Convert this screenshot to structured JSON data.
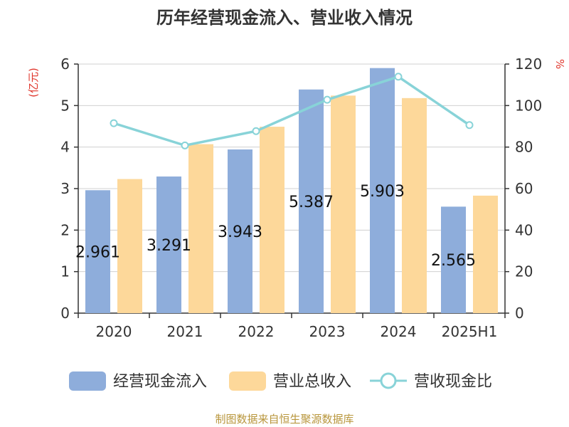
{
  "chart_data": {
    "type": "bar",
    "title": "历年经营现金流入、营业收入情况",
    "categories": [
      "2020",
      "2021",
      "2022",
      "2023",
      "2024",
      "2025H1"
    ],
    "y_left": {
      "unit": "(亿元)",
      "range": [
        0,
        6
      ],
      "ticks": [
        "0",
        "1",
        "2",
        "3",
        "4",
        "5",
        "6"
      ]
    },
    "y_right": {
      "unit": "%",
      "range": [
        0,
        120
      ],
      "ticks": [
        "0",
        "20",
        "40",
        "60",
        "80",
        "100",
        "120"
      ]
    },
    "series": [
      {
        "name": "经营现金流入",
        "type": "bar",
        "axis": "left",
        "color": "#8eaddb",
        "values": [
          2.961,
          3.291,
          3.943,
          5.387,
          5.903,
          2.565
        ],
        "labels": [
          "2.961",
          "3.291",
          "3.943",
          "5.387",
          "5.903",
          "2.565"
        ]
      },
      {
        "name": "营业总收入",
        "type": "bar",
        "axis": "left",
        "color": "#fdd89a",
        "values": [
          3.23,
          4.07,
          4.49,
          5.24,
          5.18,
          2.83
        ]
      },
      {
        "name": "营收现金比",
        "type": "line",
        "axis": "right",
        "color": "#88d3d8",
        "values": [
          91.5,
          80.8,
          87.7,
          102.8,
          113.9,
          90.6
        ]
      }
    ],
    "grid": true,
    "legend_position": "bottom"
  },
  "source": "制图数据来自恒生聚源数据库"
}
